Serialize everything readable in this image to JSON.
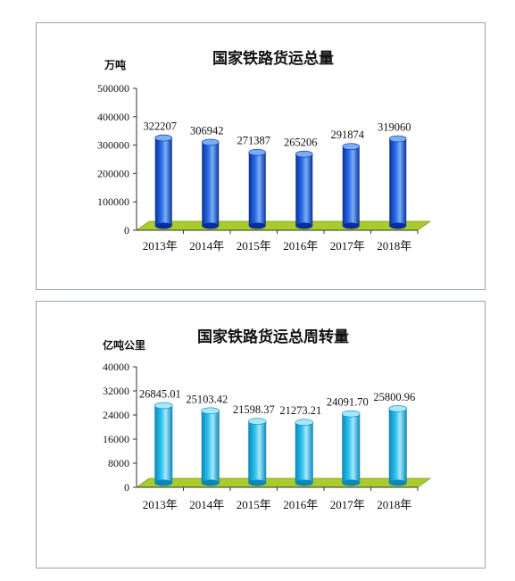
{
  "colors": {
    "floor": "#a8cc2a",
    "floor_edge": "#7f9e14",
    "bar1_dark": "#0a2f9a",
    "bar1_mid": "#2d6fe8",
    "bar1_light": "#79aef8",
    "bar2_dark": "#0a86b8",
    "bar2_mid": "#2ec3ee",
    "bar2_light": "#a6e8fb"
  },
  "chart_data": [
    {
      "type": "bar",
      "title": "国家铁路货运总量",
      "ylabel": "万吨",
      "categories": [
        "2013年",
        "2014年",
        "2015年",
        "2016年",
        "2017年",
        "2018年"
      ],
      "values": [
        322207,
        306942,
        271387,
        265206,
        291874,
        319060
      ],
      "value_labels": [
        "322207",
        "306942",
        "271387",
        "265206",
        "291874",
        "319060"
      ],
      "ylim": [
        0,
        500000
      ],
      "yticks": [
        0,
        100000,
        200000,
        300000,
        400000,
        500000
      ],
      "ytick_labels": [
        "0",
        "100000",
        "200000",
        "300000",
        "400000",
        "500000"
      ],
      "grid": false,
      "legend": "none",
      "style": "3d-cylinder"
    },
    {
      "type": "bar",
      "title": "国家铁路货运总周转量",
      "ylabel": "亿吨公里",
      "categories": [
        "2013年",
        "2014年",
        "2015年",
        "2016年",
        "2017年",
        "2018年"
      ],
      "values": [
        26845.01,
        25103.42,
        21598.37,
        21273.21,
        24091.7,
        25800.96
      ],
      "value_labels": [
        "26845.01",
        "25103.42",
        "21598.37",
        "21273.21",
        "24091.70",
        "25800.96"
      ],
      "ylim": [
        0,
        40000
      ],
      "yticks": [
        0,
        8000,
        16000,
        24000,
        32000,
        40000
      ],
      "ytick_labels": [
        "0",
        "8000",
        "16000",
        "24000",
        "32000",
        "40000"
      ],
      "grid": false,
      "legend": "none",
      "style": "3d-cylinder"
    }
  ]
}
